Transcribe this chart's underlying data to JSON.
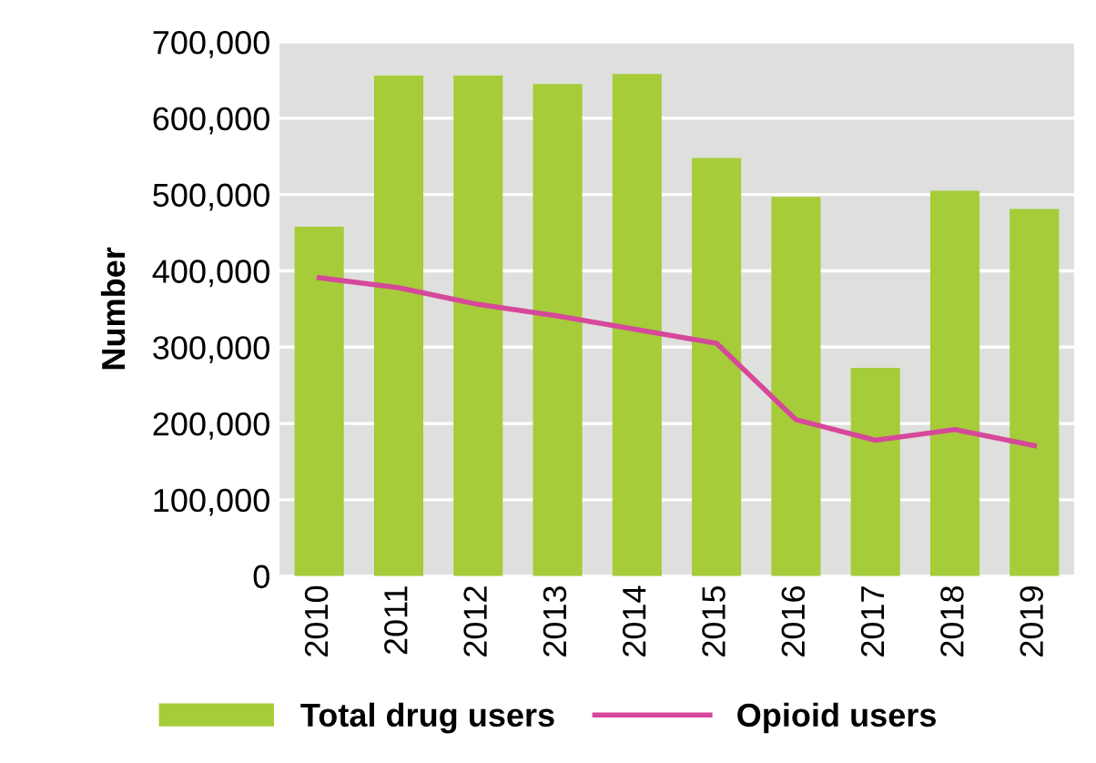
{
  "chart_data": {
    "type": "bar",
    "ylabel": "Number",
    "categories": [
      "2010",
      "2011",
      "2012",
      "2013",
      "2014",
      "2015",
      "2016",
      "2017",
      "2018",
      "2019"
    ],
    "series": [
      {
        "name": "Total drug users",
        "color": "#a6cc3a",
        "values": [
          458000,
          656000,
          656000,
          645000,
          658000,
          548000,
          497000,
          273000,
          505000,
          481000
        ]
      },
      {
        "name": "Opioid users",
        "type": "line",
        "color": "#d6489a",
        "values": [
          391000,
          378000,
          356000,
          341000,
          323000,
          305000,
          205000,
          178000,
          192000,
          171000
        ]
      }
    ],
    "ylim": [
      0,
      700000
    ],
    "yticks": [
      {
        "value": 0,
        "label": "0"
      },
      {
        "value": 100000,
        "label": "100,000"
      },
      {
        "value": 200000,
        "label": "200,000"
      },
      {
        "value": 300000,
        "label": "300,000"
      },
      {
        "value": 400000,
        "label": "400,000"
      },
      {
        "value": 500000,
        "label": "500,000"
      },
      {
        "value": 600000,
        "label": "600,000"
      },
      {
        "value": 700000,
        "label": "700,000"
      }
    ],
    "grid": "y",
    "legend": "bottom"
  }
}
